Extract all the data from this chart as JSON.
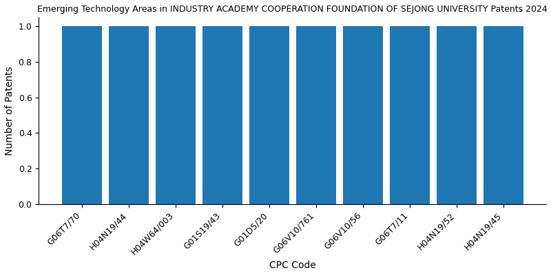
{
  "title": "Emerging Technology Areas in INDUSTRY ACADEMY COOPERATION FOUNDATION OF SEJONG UNIVERSITY Patents 2024",
  "categories": [
    "G06T7/70",
    "H04N19/44",
    "H04W64/003",
    "G01S19/43",
    "G01D5/20",
    "G06V10/761",
    "G06V10/56",
    "G06T7/11",
    "H04N19/52",
    "H04N19/45"
  ],
  "values": [
    1,
    1,
    1,
    1,
    1,
    1,
    1,
    1,
    1,
    1
  ],
  "bar_color": "#1f77b4",
  "xlabel": "CPC Code",
  "ylabel": "Number of Patents",
  "ylim": [
    0,
    1.05
  ],
  "title_fontsize": 9,
  "label_fontsize": 10,
  "tick_fontsize": 9,
  "bar_width": 0.85,
  "figsize": [
    8.0,
    4.0
  ],
  "dpi": 100
}
